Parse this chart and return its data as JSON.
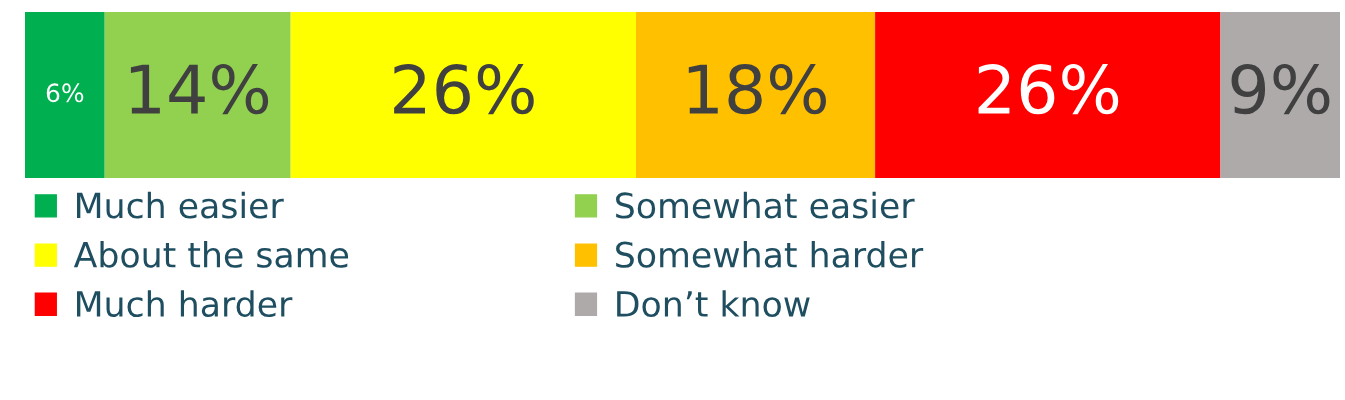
{
  "chart_data": {
    "type": "bar",
    "orientation": "horizontal",
    "stacked": true,
    "categories": [
      null
    ],
    "tick_labels": false,
    "legend": "bottom",
    "series": [
      {
        "name": "Much easier",
        "color": "#00b050",
        "values": [
          6
        ],
        "value_labels": [
          "6%"
        ]
      },
      {
        "name": "Somewhat easier",
        "color": "#92d050",
        "values": [
          14
        ],
        "value_labels": [
          "14%"
        ]
      },
      {
        "name": "About the same",
        "color": "#ffff00",
        "values": [
          26
        ],
        "value_labels": [
          "26%"
        ]
      },
      {
        "name": "Somewhat harder",
        "color": "#ffc000",
        "values": [
          18
        ],
        "value_labels": [
          "18%"
        ]
      },
      {
        "name": "Much harder",
        "color": "#ff0000",
        "values": [
          26
        ],
        "value_labels": [
          "26%"
        ]
      },
      {
        "name": "Don’t know",
        "color": "#aeaaaa",
        "values": [
          9
        ],
        "value_labels": [
          "9%"
        ]
      }
    ]
  }
}
